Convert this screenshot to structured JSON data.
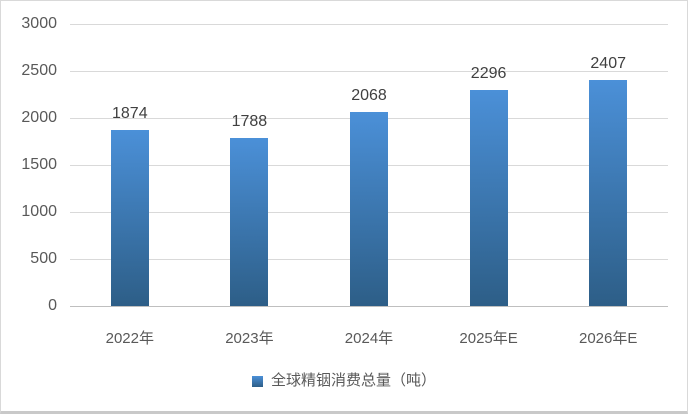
{
  "chart_data": {
    "type": "bar",
    "categories": [
      "2022年",
      "2023年",
      "2024年",
      "2025年E",
      "2026年E"
    ],
    "values": [
      1874,
      1788,
      2068,
      2296,
      2407
    ],
    "series_name": "全球精铟消费总量（吨）",
    "title": "",
    "xlabel": "",
    "ylabel": "",
    "ylim": [
      0,
      3000
    ],
    "yticks": [
      0,
      500,
      1000,
      1500,
      2000,
      2500,
      3000
    ],
    "grid": true,
    "data_labels": true,
    "legend_position": "bottom"
  },
  "legend": {
    "label": "全球精铟消费总量（吨）"
  },
  "colors": {
    "bar_top": "#4b90d8",
    "bar_bottom": "#2d5e87",
    "gridline": "#d9d9d9",
    "axis_line": "#bfbfbf",
    "tick_text": "#595959",
    "data_label_text": "#404040",
    "border": "#d9d9d9",
    "background": "#ffffff"
  }
}
